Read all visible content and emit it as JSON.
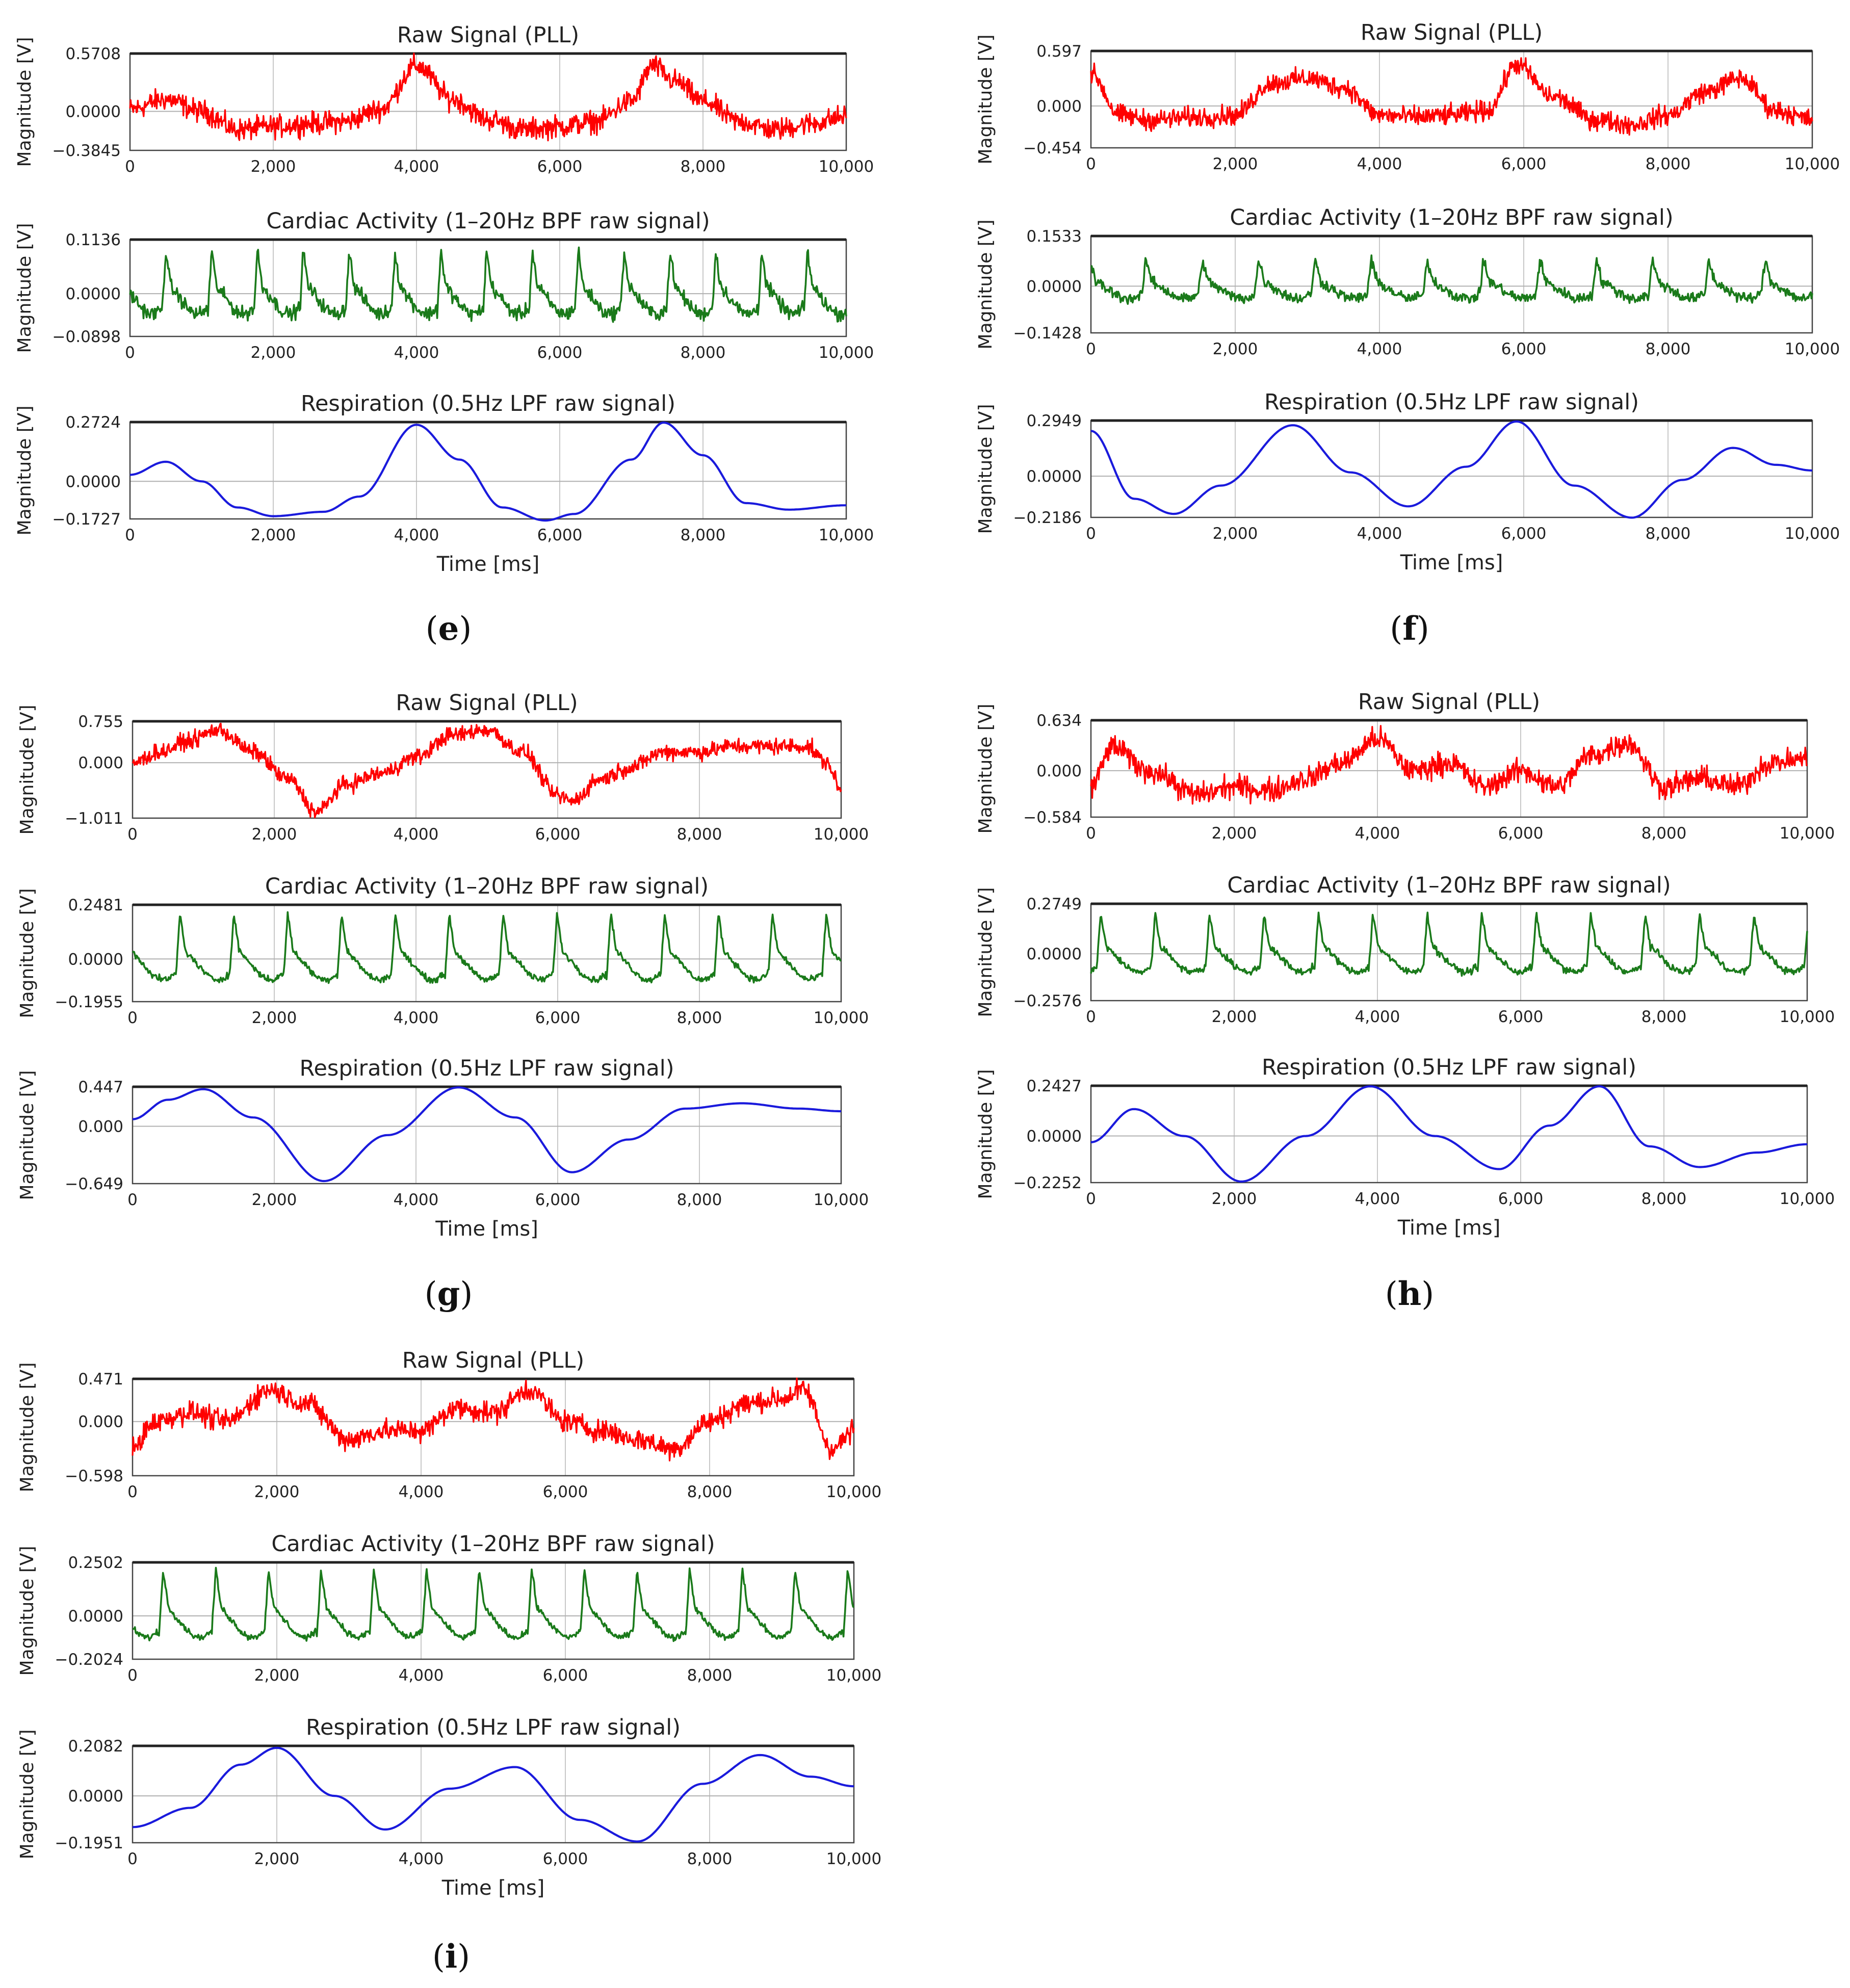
{
  "figure": {
    "x_axis_label": "Time [ms]",
    "y_axis_label": "Magnitude [V]",
    "x_tick_labels": [
      "0",
      "2,000",
      "4,000",
      "6,000",
      "8,000",
      "10,000"
    ],
    "row_titles": [
      "Raw Signal (PLL)",
      "Cardiac Activity (1–20Hz BPF raw signal)",
      "Respiration (0.5Hz LPF raw signal)"
    ],
    "colors": {
      "raw": "#ff0000",
      "cardiac": "#1a7a1a",
      "respiration": "#1a1adc"
    }
  },
  "chart_data": [
    {
      "panel": "e",
      "letter": "e",
      "type": "line",
      "x_range": [
        0,
        10000
      ],
      "raw": {
        "title": "Raw Signal (PLL)",
        "ylim": [
          -0.3845,
          0.5708
        ],
        "ytick_labels": [
          "0.5708",
          "0.0000",
          "−0.3845"
        ],
        "ytick_values": [
          0.5708,
          0.0,
          -0.3845
        ],
        "noise": 0.09,
        "x": [
          0,
          500,
          1000,
          1500,
          2000,
          2500,
          3000,
          3500,
          4000,
          4500,
          5000,
          5500,
          6000,
          6500,
          7000,
          7300,
          7600,
          8000,
          8500,
          9000,
          9500,
          10000
        ],
        "y": [
          0.02,
          0.12,
          0.0,
          -0.18,
          -0.15,
          -0.12,
          -0.1,
          0.02,
          0.45,
          0.12,
          -0.08,
          -0.18,
          -0.15,
          -0.1,
          0.1,
          0.45,
          0.3,
          0.1,
          -0.1,
          -0.18,
          -0.12,
          -0.05
        ]
      },
      "cardiac": {
        "title": "Cardiac Activity (1–20Hz BPF raw signal)",
        "ylim": [
          -0.0898,
          0.1136
        ],
        "ytick_labels": [
          "0.1136",
          "0.0000",
          "−0.0898"
        ],
        "ytick_values": [
          0.1136,
          0.0,
          -0.0898
        ],
        "beat_ms": 640,
        "amp": 0.085,
        "noise": 0.012,
        "phase": 0.3
      },
      "respiration": {
        "title": "Respiration (0.5Hz LPF raw signal)",
        "ylim": [
          -0.1727,
          0.2724
        ],
        "ytick_labels": [
          "0.2724",
          "0.0000",
          "−0.1727"
        ],
        "ytick_values": [
          0.2724,
          0.0,
          -0.1727
        ],
        "xlabel": "Time [ms]",
        "x": [
          0,
          500,
          1000,
          1500,
          2000,
          2700,
          3200,
          4000,
          4600,
          5200,
          5800,
          6200,
          7000,
          7450,
          8000,
          8600,
          9200,
          10000
        ],
        "y": [
          0.03,
          0.09,
          0.0,
          -0.12,
          -0.16,
          -0.14,
          -0.07,
          0.26,
          0.1,
          -0.12,
          -0.18,
          -0.15,
          0.1,
          0.27,
          0.12,
          -0.1,
          -0.13,
          -0.11
        ]
      }
    },
    {
      "panel": "f",
      "letter": "f",
      "type": "line",
      "x_range": [
        0,
        10000
      ],
      "raw": {
        "title": "Raw Signal (PLL)",
        "ylim": [
          -0.454,
          0.597
        ],
        "ytick_labels": [
          "0.597",
          "0.000",
          "−0.454"
        ],
        "ytick_values": [
          0.597,
          0.0,
          -0.454
        ],
        "noise": 0.09,
        "x": [
          0,
          400,
          800,
          1500,
          2000,
          2500,
          3000,
          3500,
          4000,
          4500,
          5000,
          5500,
          5900,
          6400,
          7000,
          7500,
          8000,
          8500,
          9000,
          9500,
          10000
        ],
        "y": [
          0.35,
          -0.1,
          -0.15,
          -0.12,
          -0.1,
          0.25,
          0.3,
          0.2,
          -0.1,
          -0.12,
          -0.1,
          -0.05,
          0.45,
          0.1,
          -0.15,
          -0.2,
          -0.1,
          0.15,
          0.3,
          -0.05,
          -0.15
        ]
      },
      "cardiac": {
        "title": "Cardiac Activity (1–20Hz BPF raw signal)",
        "ylim": [
          -0.1428,
          0.1533
        ],
        "ytick_labels": [
          "0.1533",
          "0.0000",
          "−0.1428"
        ],
        "ytick_values": [
          0.1533,
          0.0,
          -0.1428
        ],
        "beat_ms": 780,
        "amp": 0.075,
        "noise": 0.014,
        "phase": 1.1
      },
      "respiration": {
        "title": "Respiration (0.5Hz LPF raw signal)",
        "ylim": [
          -0.2186,
          0.2949
        ],
        "ytick_labels": [
          "0.2949",
          "0.0000",
          "−0.2186"
        ],
        "ytick_values": [
          0.2949,
          0.0,
          -0.2186
        ],
        "xlabel": "Time [ms]",
        "x": [
          0,
          600,
          1150,
          1800,
          2800,
          3600,
          4400,
          5200,
          5900,
          6700,
          7500,
          8200,
          8900,
          9500,
          10000
        ],
        "y": [
          0.24,
          -0.12,
          -0.2,
          -0.05,
          0.27,
          0.02,
          -0.16,
          0.05,
          0.29,
          -0.05,
          -0.22,
          -0.02,
          0.15,
          0.06,
          0.03
        ]
      }
    },
    {
      "panel": "g",
      "letter": "g",
      "type": "line",
      "x_range": [
        0,
        10000
      ],
      "raw": {
        "title": "Raw Signal (PLL)",
        "ylim": [
          -1.011,
          0.755
        ],
        "ytick_labels": [
          "0.755",
          "0.000",
          "−1.011"
        ],
        "ytick_values": [
          0.755,
          0.0,
          -1.011
        ],
        "noise": 0.12,
        "x": [
          0,
          400,
          800,
          1200,
          1700,
          2200,
          2600,
          3000,
          3500,
          4000,
          4500,
          5000,
          5500,
          6000,
          6200,
          6600,
          7000,
          7500,
          8000,
          8500,
          9000,
          9500,
          9800,
          10000
        ],
        "y": [
          0.0,
          0.2,
          0.4,
          0.6,
          0.2,
          -0.3,
          -0.9,
          -0.4,
          -0.2,
          0.1,
          0.5,
          0.6,
          0.2,
          -0.6,
          -0.7,
          -0.3,
          -0.1,
          0.2,
          0.2,
          0.3,
          0.3,
          0.3,
          0.0,
          -0.5
        ]
      },
      "cardiac": {
        "title": "Cardiac Activity (1–20Hz BPF raw signal)",
        "ylim": [
          -0.1955,
          0.2481
        ],
        "ytick_labels": [
          "0.2481",
          "0.0000",
          "−0.1955"
        ],
        "ytick_values": [
          0.2481,
          0.0,
          -0.1955
        ],
        "beat_ms": 760,
        "amp": 0.19,
        "noise": 0.012,
        "phase": 0.2
      },
      "respiration": {
        "title": "Respiration (0.5Hz LPF raw signal)",
        "ylim": [
          -0.649,
          0.447
        ],
        "ytick_labels": [
          "0.447",
          "0.000",
          "−0.649"
        ],
        "ytick_values": [
          0.447,
          0.0,
          -0.649
        ],
        "xlabel": "Time [ms]",
        "x": [
          0,
          500,
          1000,
          1700,
          2700,
          3600,
          4600,
          5400,
          6200,
          7000,
          7800,
          8600,
          9400,
          10000
        ],
        "y": [
          0.08,
          0.3,
          0.42,
          0.1,
          -0.62,
          -0.1,
          0.44,
          0.1,
          -0.52,
          -0.15,
          0.2,
          0.26,
          0.2,
          0.17
        ]
      }
    },
    {
      "panel": "h",
      "letter": "h",
      "type": "line",
      "x_range": [
        0,
        10000
      ],
      "raw": {
        "title": "Raw Signal (PLL)",
        "ylim": [
          -0.584,
          0.634
        ],
        "ytick_labels": [
          "0.634",
          "0.000",
          "−0.584"
        ],
        "ytick_values": [
          0.634,
          0.0,
          -0.584
        ],
        "noise": 0.12,
        "x": [
          0,
          300,
          800,
          1500,
          2000,
          2500,
          3000,
          3500,
          4000,
          4500,
          5000,
          5500,
          6000,
          6500,
          7000,
          7500,
          8000,
          8500,
          9000,
          9500,
          10000
        ],
        "y": [
          -0.2,
          0.3,
          0.0,
          -0.3,
          -0.2,
          -0.25,
          -0.1,
          0.1,
          0.4,
          0.0,
          0.1,
          -0.2,
          0.0,
          -0.2,
          0.2,
          0.35,
          -0.2,
          -0.1,
          -0.2,
          0.1,
          0.15
        ]
      },
      "cardiac": {
        "title": "Cardiac Activity (1–20Hz BPF raw signal)",
        "ylim": [
          -0.2576,
          0.2749
        ],
        "ytick_labels": [
          "0.2749",
          "0.0000",
          "−0.2576"
        ],
        "ytick_values": [
          0.2749,
          0.0,
          -0.2576
        ],
        "beat_ms": 760,
        "amp": 0.2,
        "noise": 0.016,
        "phase": 0.9
      },
      "respiration": {
        "title": "Respiration (0.5Hz LPF raw signal)",
        "ylim": [
          -0.2252,
          0.2427
        ],
        "ytick_labels": [
          "0.2427",
          "0.0000",
          "−0.2252"
        ],
        "ytick_values": [
          0.2427,
          0.0,
          -0.2252
        ],
        "xlabel": "Time [ms]",
        "x": [
          0,
          600,
          1300,
          2100,
          3000,
          3900,
          4800,
          5700,
          6400,
          7100,
          7800,
          8500,
          9300,
          10000
        ],
        "y": [
          -0.03,
          0.13,
          0.0,
          -0.22,
          0.0,
          0.24,
          0.0,
          -0.16,
          0.05,
          0.24,
          -0.05,
          -0.15,
          -0.08,
          -0.04
        ]
      }
    },
    {
      "panel": "i",
      "letter": "i",
      "type": "line",
      "x_range": [
        0,
        10000
      ],
      "raw": {
        "title": "Raw Signal (PLL)",
        "ylim": [
          -0.598,
          0.471
        ],
        "ytick_labels": [
          "0.471",
          "0.000",
          "−0.598"
        ],
        "ytick_values": [
          0.471,
          0.0,
          -0.598
        ],
        "noise": 0.1,
        "x": [
          0,
          300,
          800,
          1300,
          1900,
          2400,
          3000,
          3500,
          4000,
          4500,
          5000,
          5500,
          6000,
          6500,
          7000,
          7500,
          8000,
          8500,
          9000,
          9300,
          9700,
          10000
        ],
        "y": [
          -0.3,
          0.0,
          0.1,
          0.0,
          0.35,
          0.2,
          -0.2,
          -0.1,
          -0.1,
          0.15,
          0.1,
          0.35,
          0.0,
          -0.1,
          -0.2,
          -0.3,
          0.0,
          0.2,
          0.25,
          0.35,
          -0.3,
          -0.1
        ]
      },
      "cardiac": {
        "title": "Cardiac Activity (1–20Hz BPF raw signal)",
        "ylim": [
          -0.2024,
          0.2502
        ],
        "ytick_labels": [
          "0.2502",
          "0.0000",
          "−0.2024"
        ],
        "ytick_values": [
          0.2502,
          0.0,
          -0.2024
        ],
        "beat_ms": 730,
        "amp": 0.2,
        "noise": 0.012,
        "phase": 0.5
      },
      "respiration": {
        "title": "Respiration (0.5Hz LPF raw signal)",
        "ylim": [
          -0.1951,
          0.2082
        ],
        "ytick_labels": [
          "0.2082",
          "0.0000",
          "−0.1951"
        ],
        "ytick_values": [
          0.2082,
          0.0,
          -0.1951
        ],
        "xlabel": "Time [ms]",
        "x": [
          0,
          800,
          1500,
          2000,
          2800,
          3500,
          4400,
          5300,
          6200,
          7000,
          7900,
          8700,
          9400,
          10000
        ],
        "y": [
          -0.13,
          -0.05,
          0.13,
          0.2,
          0.0,
          -0.14,
          0.03,
          0.12,
          -0.1,
          -0.19,
          0.05,
          0.17,
          0.08,
          0.04
        ]
      }
    }
  ]
}
